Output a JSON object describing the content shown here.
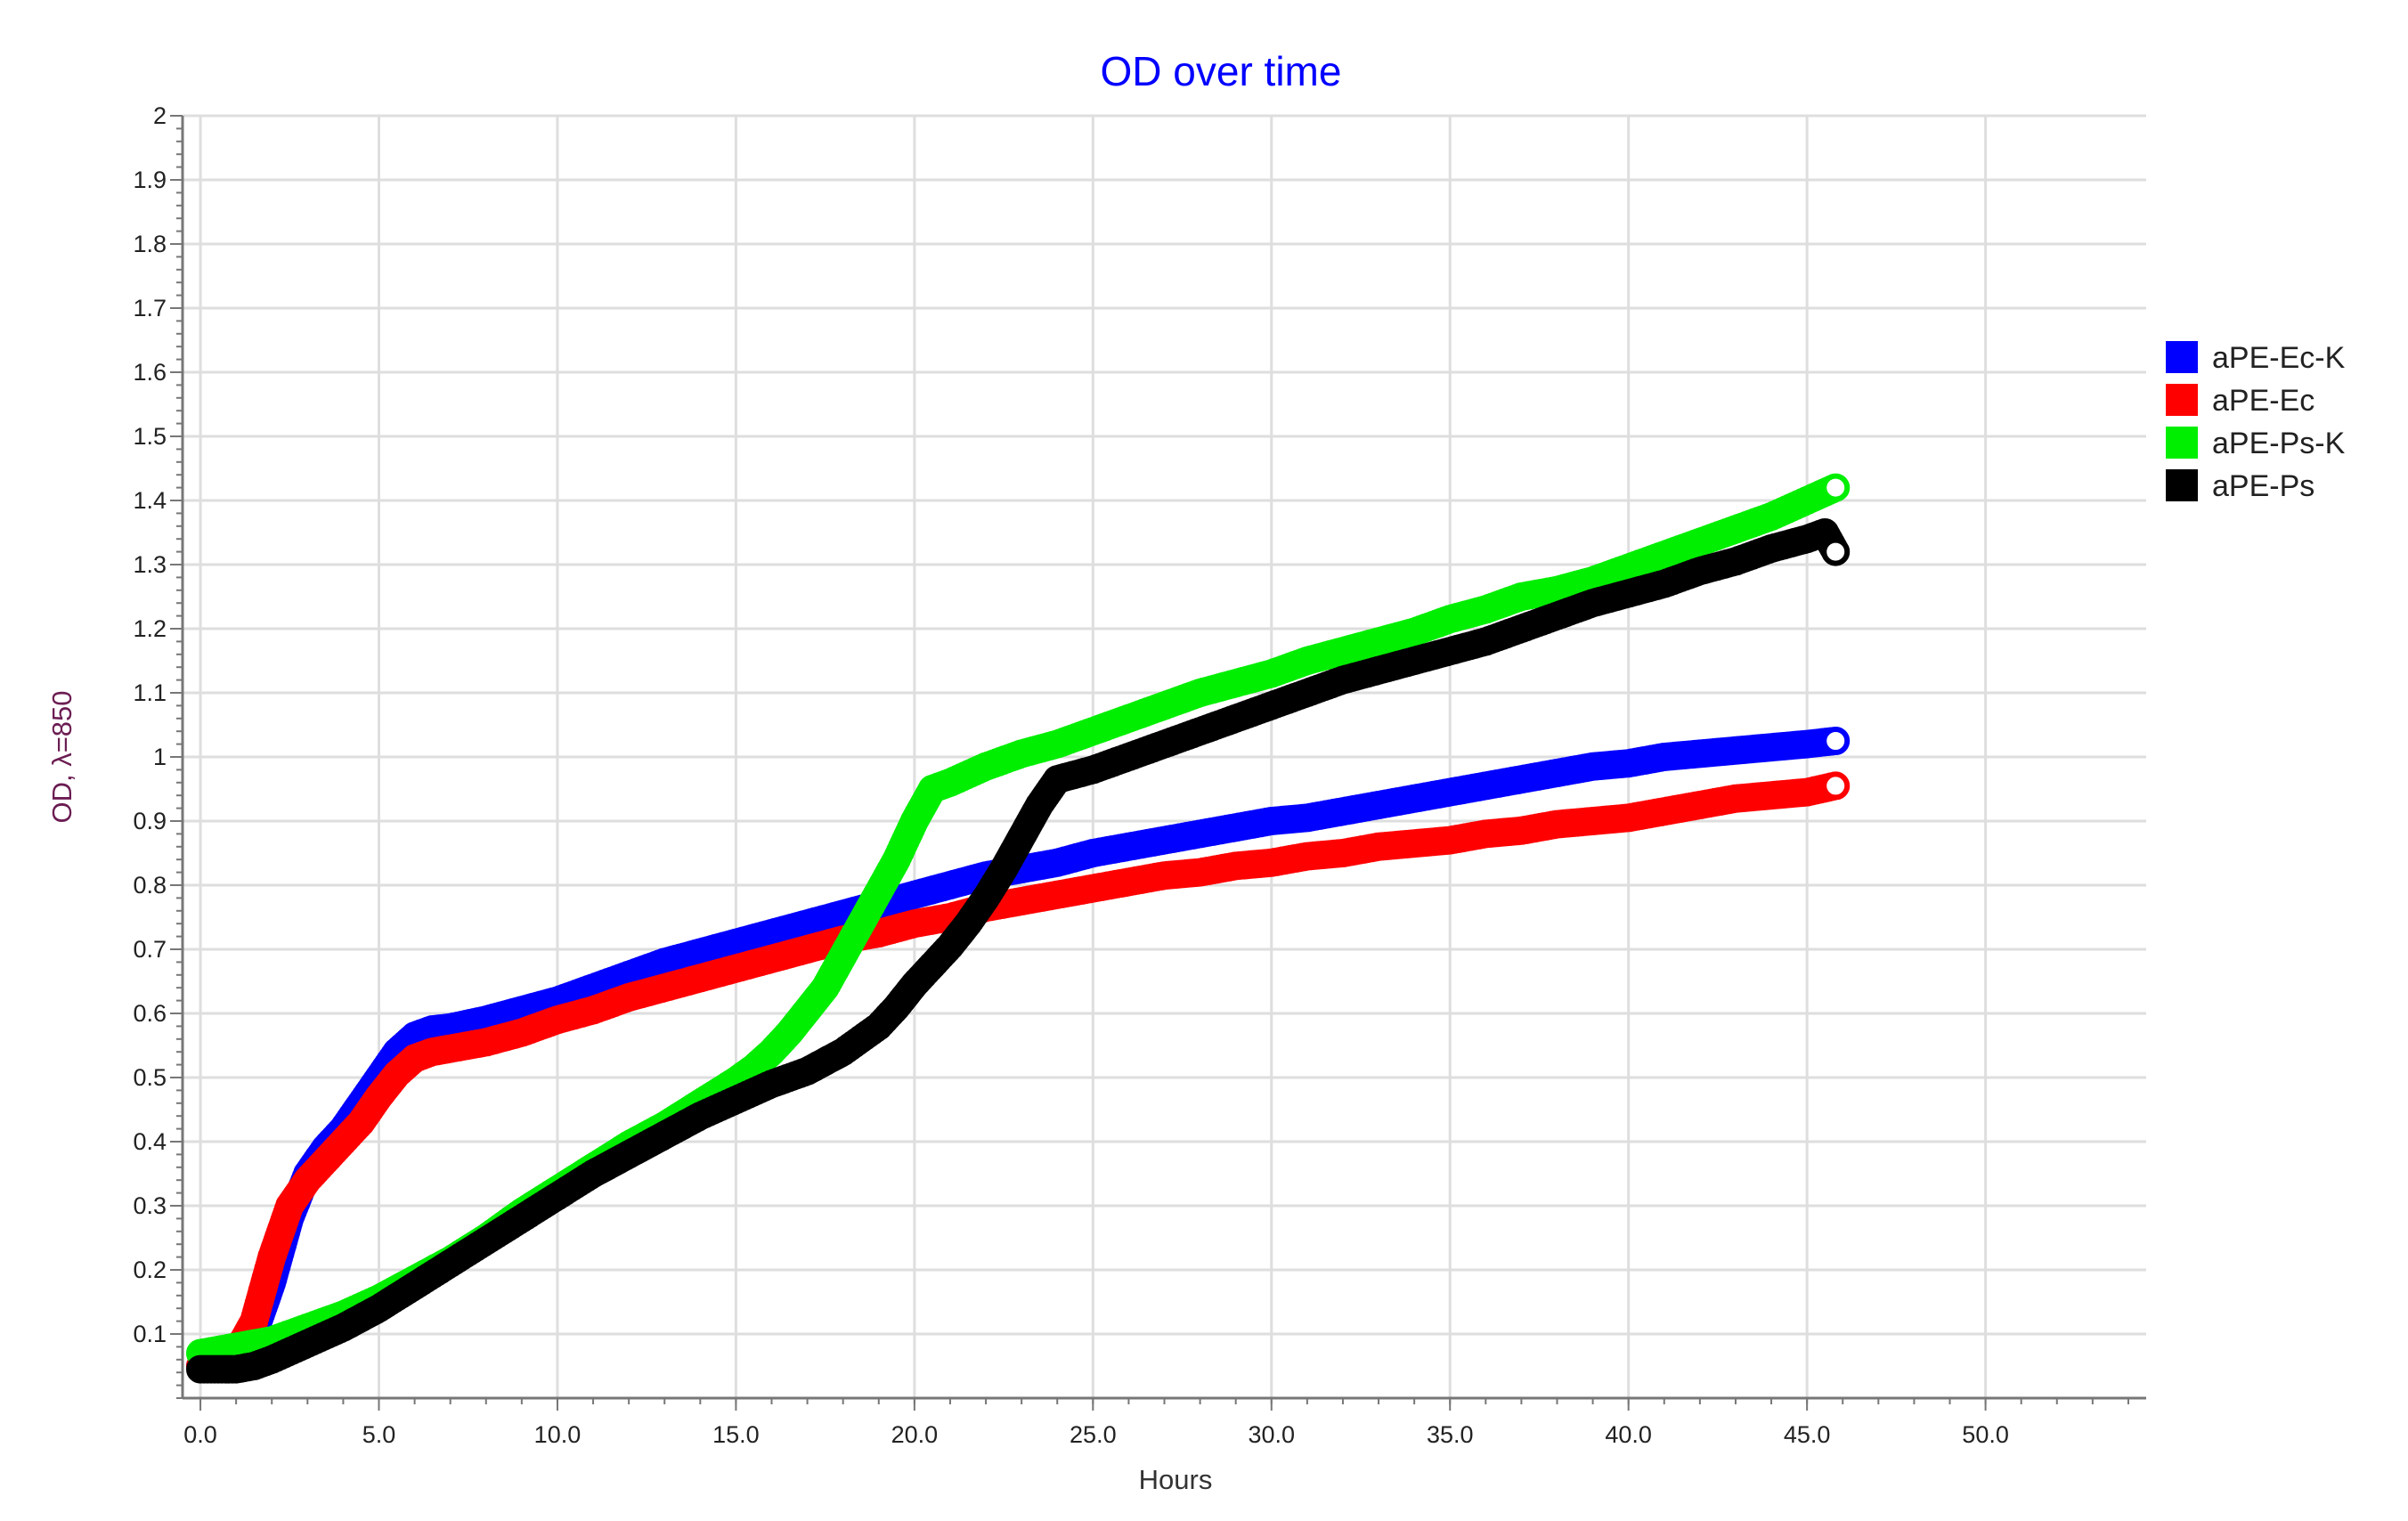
{
  "chart_data": {
    "type": "scatter",
    "title": "OD over time",
    "xlabel": "Hours",
    "ylabel": "OD, λ=850",
    "xlim": [
      -0.5,
      54.5
    ],
    "ylim": [
      0,
      2
    ],
    "xticks": [
      "0.0",
      "5.0",
      "10.0",
      "15.0",
      "20.0",
      "25.0",
      "30.0",
      "35.0",
      "40.0",
      "45.0",
      "50.0"
    ],
    "yticks": [
      "0.1",
      "0.2",
      "0.3",
      "0.4",
      "0.5",
      "0.6",
      "0.7",
      "0.8",
      "0.9",
      "1",
      "1.1",
      "1.2",
      "1.3",
      "1.4",
      "1.5",
      "1.6",
      "1.7",
      "1.8",
      "1.9",
      "2"
    ],
    "grid": true,
    "legend_position": "right",
    "marker": "hollow-circle",
    "series": [
      {
        "name": "aPE-Ec-K",
        "color": "#0000ff",
        "x": [
          0,
          0.5,
          1,
          1.5,
          2,
          2.5,
          3,
          3.5,
          4,
          4.5,
          5,
          5.5,
          6,
          6.5,
          7,
          8,
          9,
          10,
          11,
          12,
          13,
          14,
          15,
          16,
          17,
          18,
          19,
          20,
          21,
          22,
          23,
          24,
          25,
          26,
          27,
          28,
          29,
          30,
          31,
          32,
          33,
          34,
          35,
          36,
          37,
          38,
          39,
          40,
          41,
          42,
          43,
          44,
          45,
          45.8
        ],
        "y": [
          0.05,
          0.05,
          0.07,
          0.1,
          0.18,
          0.28,
          0.35,
          0.39,
          0.42,
          0.46,
          0.5,
          0.54,
          0.565,
          0.575,
          0.578,
          0.59,
          0.605,
          0.62,
          0.64,
          0.66,
          0.68,
          0.695,
          0.71,
          0.725,
          0.74,
          0.755,
          0.77,
          0.785,
          0.8,
          0.815,
          0.825,
          0.835,
          0.85,
          0.86,
          0.87,
          0.88,
          0.89,
          0.9,
          0.905,
          0.915,
          0.925,
          0.935,
          0.945,
          0.955,
          0.965,
          0.975,
          0.985,
          0.99,
          1.0,
          1.005,
          1.01,
          1.015,
          1.02,
          1.025
        ]
      },
      {
        "name": "aPE-Ec",
        "color": "#ff0000",
        "x": [
          0,
          0.5,
          1,
          1.5,
          2,
          2.5,
          3,
          3.5,
          4,
          4.5,
          5,
          5.5,
          6,
          6.5,
          7,
          8,
          9,
          10,
          11,
          12,
          13,
          14,
          15,
          16,
          17,
          18,
          19,
          20,
          21,
          22,
          23,
          24,
          25,
          26,
          27,
          28,
          29,
          30,
          31,
          32,
          33,
          34,
          35,
          36,
          37,
          38,
          39,
          40,
          41,
          42,
          43,
          44,
          45,
          45.8
        ],
        "y": [
          0.05,
          0.05,
          0.07,
          0.12,
          0.22,
          0.3,
          0.34,
          0.37,
          0.4,
          0.43,
          0.47,
          0.505,
          0.53,
          0.54,
          0.545,
          0.555,
          0.57,
          0.59,
          0.605,
          0.625,
          0.64,
          0.655,
          0.67,
          0.685,
          0.7,
          0.715,
          0.725,
          0.74,
          0.75,
          0.765,
          0.775,
          0.785,
          0.795,
          0.805,
          0.815,
          0.82,
          0.83,
          0.835,
          0.845,
          0.85,
          0.86,
          0.865,
          0.87,
          0.88,
          0.885,
          0.895,
          0.9,
          0.905,
          0.915,
          0.925,
          0.935,
          0.94,
          0.945,
          0.955
        ]
      },
      {
        "name": "aPE-Ps-K",
        "color": "#00ee00",
        "x": [
          0,
          0.5,
          1,
          1.5,
          2,
          3,
          4,
          5,
          6,
          7,
          8,
          9,
          10,
          11,
          12,
          13,
          14,
          15,
          15.5,
          16,
          16.5,
          17,
          17.5,
          18,
          18.5,
          19,
          19.5,
          20,
          20.5,
          21,
          22,
          23,
          24,
          25,
          26,
          27,
          28,
          29,
          30,
          31,
          32,
          33,
          34,
          35,
          36,
          37,
          38,
          39,
          40,
          41,
          42,
          43,
          44,
          45,
          45.8
        ],
        "y": [
          0.07,
          0.075,
          0.08,
          0.085,
          0.09,
          0.11,
          0.13,
          0.155,
          0.185,
          0.215,
          0.25,
          0.29,
          0.325,
          0.36,
          0.395,
          0.425,
          0.46,
          0.495,
          0.515,
          0.54,
          0.57,
          0.605,
          0.64,
          0.69,
          0.74,
          0.79,
          0.84,
          0.9,
          0.95,
          0.96,
          0.985,
          1.005,
          1.02,
          1.04,
          1.06,
          1.08,
          1.1,
          1.115,
          1.13,
          1.15,
          1.165,
          1.18,
          1.195,
          1.215,
          1.23,
          1.25,
          1.26,
          1.275,
          1.295,
          1.315,
          1.335,
          1.355,
          1.375,
          1.4,
          1.42
        ]
      },
      {
        "name": "aPE-Ps",
        "color": "#000000",
        "x": [
          0,
          0.5,
          1,
          1.5,
          2,
          3,
          4,
          5,
          6,
          7,
          8,
          9,
          10,
          11,
          12,
          13,
          14,
          15,
          16,
          17,
          18,
          19,
          19.5,
          20,
          20.5,
          21,
          21.5,
          22,
          22.5,
          23,
          23.5,
          24,
          25,
          26,
          27,
          28,
          29,
          30,
          31,
          32,
          33,
          34,
          35,
          36,
          37,
          38,
          39,
          40,
          41,
          42,
          43,
          44,
          45,
          45.5,
          45.8
        ],
        "y": [
          0.045,
          0.045,
          0.045,
          0.05,
          0.06,
          0.085,
          0.11,
          0.14,
          0.175,
          0.21,
          0.245,
          0.28,
          0.315,
          0.35,
          0.38,
          0.41,
          0.44,
          0.465,
          0.49,
          0.51,
          0.54,
          0.58,
          0.61,
          0.645,
          0.675,
          0.705,
          0.74,
          0.78,
          0.825,
          0.875,
          0.925,
          0.965,
          0.98,
          1.0,
          1.02,
          1.04,
          1.06,
          1.08,
          1.1,
          1.12,
          1.135,
          1.15,
          1.165,
          1.18,
          1.2,
          1.22,
          1.24,
          1.255,
          1.27,
          1.29,
          1.305,
          1.325,
          1.34,
          1.35,
          1.32
        ]
      }
    ]
  }
}
